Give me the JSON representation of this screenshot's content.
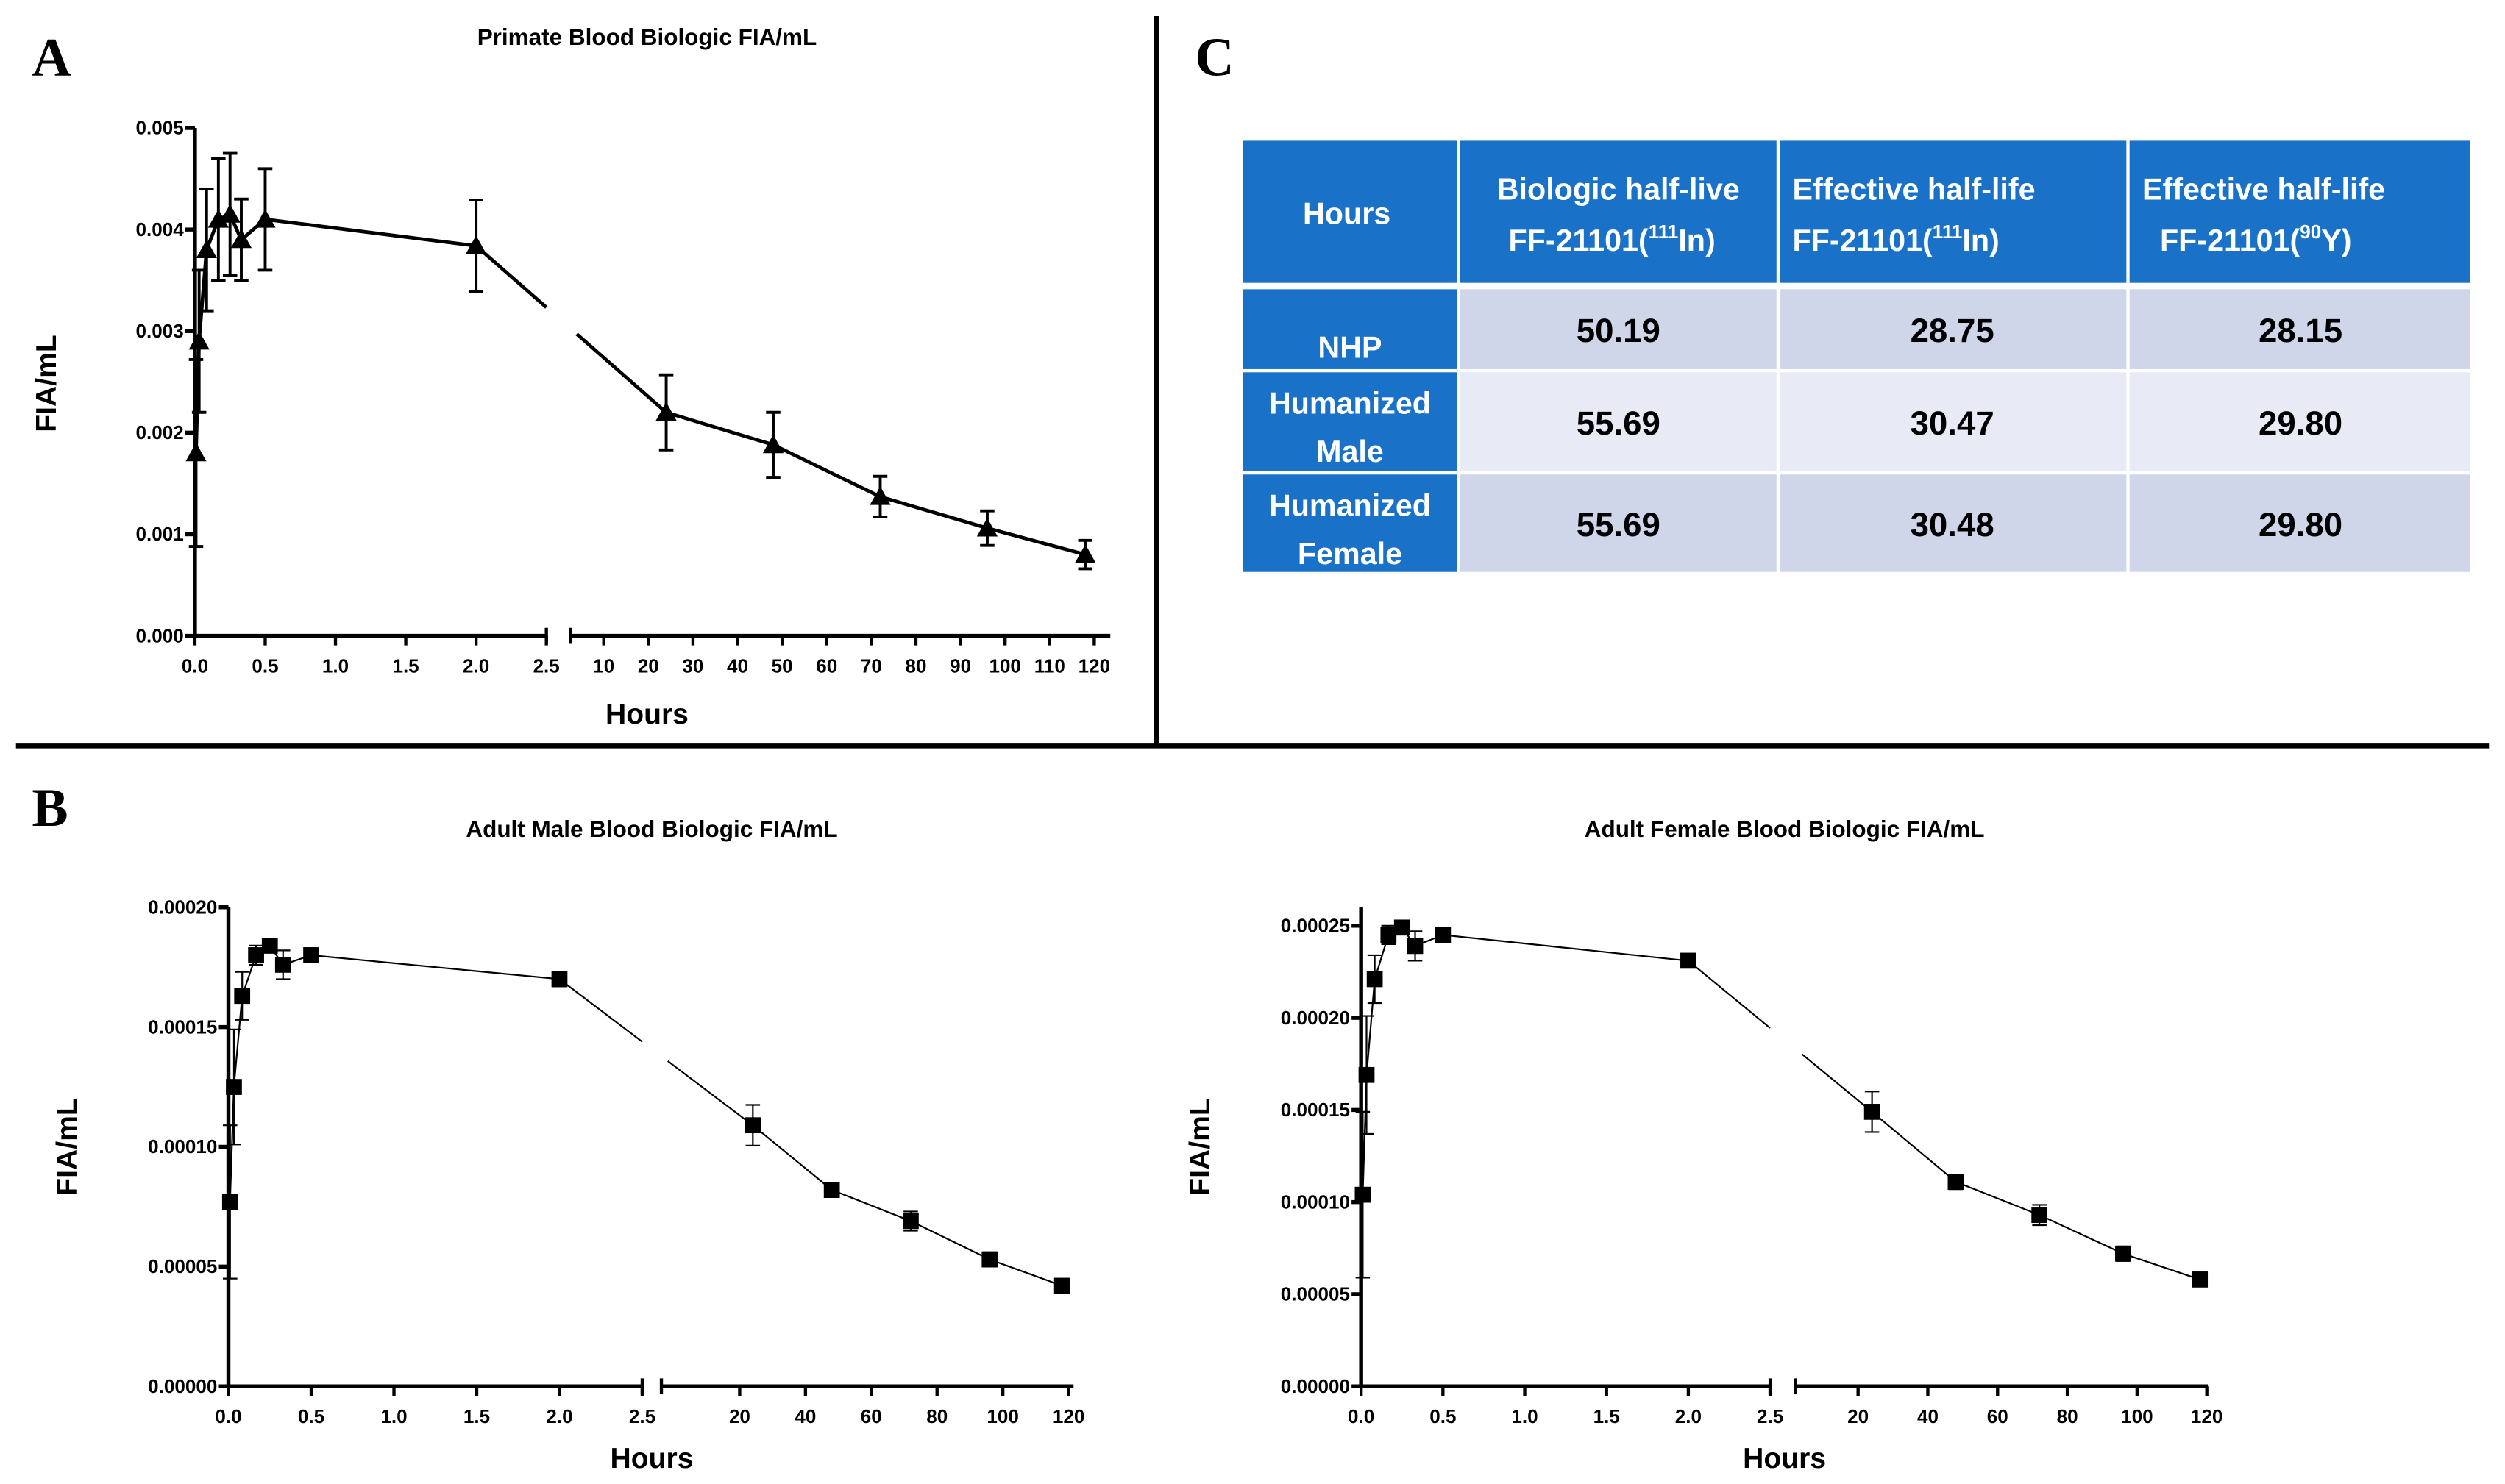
{
  "panel_letters": {
    "a": "A",
    "b": "B",
    "c": "C"
  },
  "colors": {
    "header_blue": "#1a72c8",
    "row_dark": "#cfd6ea",
    "row_light": "#e8ebf5"
  },
  "table": {
    "header": {
      "col0": "Hours",
      "col1": {
        "line1": "Biologic half-live",
        "pre": "FF-21101(",
        "sup": "111",
        "post": "In)"
      },
      "col2": {
        "line1": "Effective half-life",
        "pre": "FF-21101(",
        "sup": "111",
        "post": "In)"
      },
      "col3": {
        "line1": "Effective half-life",
        "pre": "FF-21101(",
        "sup": "90",
        "post": "Y)"
      }
    },
    "rows": [
      {
        "label1": "NHP",
        "label2": "",
        "values": [
          "50.19",
          "28.75",
          "28.15"
        ]
      },
      {
        "label1": "Humanized",
        "label2": "Male",
        "values": [
          "55.69",
          "30.47",
          "29.80"
        ]
      },
      {
        "label1": "Humanized",
        "label2": "Female",
        "values": [
          "55.69",
          "30.48",
          "29.80"
        ]
      }
    ]
  },
  "chart_data": [
    {
      "type": "line",
      "title": "Primate Blood Biologic FIA/mL",
      "xlabel": "Hours",
      "ylabel": "FIA/mL",
      "marker": "triangle",
      "ylim": [
        0,
        0.005
      ],
      "y_ticks": [
        0,
        0.001,
        0.002,
        0.003,
        0.004,
        0.005
      ],
      "y_tick_labels": [
        "0.000",
        "0.001",
        "0.002",
        "0.003",
        "0.004",
        "0.005"
      ],
      "x_break": {
        "left_range": [
          0,
          2.5
        ],
        "right_range": [
          2.5,
          123.6
        ]
      },
      "x_ticks_left": [
        0,
        0.5,
        1.0,
        1.5,
        2.0,
        2.5
      ],
      "x_tick_labels_left": [
        "0.0",
        "0.5",
        "1.0",
        "1.5",
        "2.0",
        "2.5"
      ],
      "x_ticks_right": [
        10,
        20,
        30,
        40,
        50,
        60,
        70,
        80,
        90,
        100,
        110,
        120
      ],
      "x_tick_labels_right": [
        "10",
        "20",
        "30",
        "40",
        "50",
        "60",
        "70",
        "80",
        "90",
        "100",
        "110",
        "120"
      ],
      "x": [
        0.008,
        0.03,
        0.083,
        0.167,
        0.25,
        0.33,
        0.5,
        2,
        24,
        48,
        72,
        96,
        118
      ],
      "y": [
        0.0018,
        0.0029,
        0.0038,
        0.0041,
        0.00415,
        0.0039,
        0.0041,
        0.00384,
        0.0022,
        0.00188,
        0.00137,
        0.00106,
        0.0008
      ],
      "err": [
        0.00092,
        0.0007,
        0.0006,
        0.0006,
        0.0006,
        0.0004,
        0.0005,
        0.00045,
        0.00037,
        0.00032,
        0.0002,
        0.00017,
        0.00014
      ]
    },
    {
      "type": "line",
      "title": "Adult Male Blood Biologic FIA/mL",
      "xlabel": "Hours",
      "ylabel": "FIA/mL",
      "marker": "square",
      "ylim": [
        0,
        0.0002
      ],
      "y_ticks": [
        0,
        5e-05,
        0.0001,
        0.00015,
        0.0002
      ],
      "y_tick_labels": [
        "0.00000",
        "0.00005",
        "0.00010",
        "0.00015",
        "0.00020"
      ],
      "x_break": {
        "left_range": [
          0,
          2.5
        ],
        "right_range": [
          -3.8,
          121.5
        ]
      },
      "x_ticks_left": [
        0,
        0.5,
        1.0,
        1.5,
        2.0,
        2.5
      ],
      "x_tick_labels_left": [
        "0.0",
        "0.5",
        "1.0",
        "1.5",
        "2.0",
        "2.5"
      ],
      "x_ticks_right": [
        20,
        40,
        60,
        80,
        100,
        120
      ],
      "x_tick_labels_right": [
        "20",
        "40",
        "60",
        "80",
        "100",
        "120"
      ],
      "x": [
        0.01,
        0.033,
        0.083,
        0.167,
        0.25,
        0.33,
        0.5,
        2,
        24,
        48,
        72,
        96,
        118
      ],
      "y": [
        7.7e-05,
        0.000125,
        0.000163,
        0.00018,
        0.000184,
        0.000176,
        0.00018,
        0.00017,
        0.000109,
        8.2e-05,
        6.9e-05,
        5.3e-05,
        4.2e-05
      ],
      "err": [
        3.2e-05,
        2.4e-05,
        1e-05,
        4e-06,
        3e-06,
        6e-06,
        2e-06,
        3e-06,
        8.5e-06,
        3e-06,
        4e-06,
        3e-06,
        2e-06
      ]
    },
    {
      "type": "line",
      "title": "Adult Female Blood Biologic FIA/mL",
      "xlabel": "Hours",
      "ylabel": "FIA/mL",
      "marker": "square",
      "ylim": [
        0,
        0.00026
      ],
      "y_ticks": [
        0,
        5e-05,
        0.0001,
        0.00015,
        0.0002,
        0.00025
      ],
      "y_tick_labels": [
        "0.00000",
        "0.00005",
        "0.00010",
        "0.00015",
        "0.00020",
        "0.00025"
      ],
      "x_break": {
        "left_range": [
          0,
          2.5
        ],
        "right_range": [
          2.1,
          120.3
        ]
      },
      "x_ticks_left": [
        0,
        0.5,
        1.0,
        1.5,
        2.0,
        2.5
      ],
      "x_tick_labels_left": [
        "0.0",
        "0.5",
        "1.0",
        "1.5",
        "2.0",
        "2.5"
      ],
      "x_ticks_right": [
        20,
        40,
        60,
        80,
        100,
        120
      ],
      "x_tick_labels_right": [
        "20",
        "40",
        "60",
        "80",
        "100",
        "120"
      ],
      "x": [
        0.01,
        0.033,
        0.083,
        0.167,
        0.25,
        0.33,
        0.5,
        2,
        24,
        48,
        72,
        96,
        118
      ],
      "y": [
        0.000104,
        0.000169,
        0.000221,
        0.000245,
        0.000249,
        0.000239,
        0.000245,
        0.000231,
        0.000149,
        0.000111,
        9.3e-05,
        7.2e-05,
        5.8e-05
      ],
      "err": [
        4.5e-05,
        3.2e-05,
        1.3e-05,
        5e-06,
        3e-06,
        8e-06,
        2e-06,
        3.5e-06,
        1.1e-05,
        4e-06,
        5.5e-06,
        4e-06,
        3e-06
      ]
    }
  ]
}
